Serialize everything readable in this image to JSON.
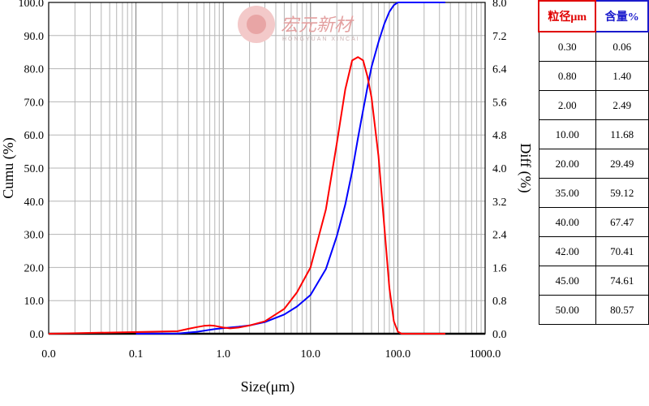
{
  "watermark": {
    "text": "宏元新材",
    "subtext": "HONGYUAN XINCAI"
  },
  "chart_data": {
    "type": "line",
    "x_scale": "log",
    "xlabel": "Size(μm)",
    "ylabel_left": "Cumu (%)",
    "ylabel_right": "Diff (%)",
    "xlim": [
      0.01,
      1000
    ],
    "ylim_left": [
      0,
      100
    ],
    "ylim_right": [
      0,
      8
    ],
    "x_tick_labels": [
      "0.0",
      "0.1",
      "1.0",
      "10.0",
      "100.0",
      "1000.0"
    ],
    "y_left_tick_labels": [
      "0.0",
      "10.0",
      "20.0",
      "30.0",
      "40.0",
      "50.0",
      "60.0",
      "70.0",
      "80.0",
      "90.0",
      "100.0"
    ],
    "y_right_tick_labels": [
      "0.0",
      "0.8",
      "1.6",
      "2.4",
      "3.2",
      "4.0",
      "4.8",
      "5.6",
      "6.4",
      "7.2",
      "8.0"
    ],
    "grid": true,
    "series": [
      {
        "axis": "left",
        "color": "#0000ff",
        "x": [
          0.1,
          0.3,
          0.5,
          0.8,
          1.0,
          1.5,
          2.0,
          3.0,
          5.0,
          7.0,
          10.0,
          15.0,
          20.0,
          25.0,
          30.0,
          35.0,
          40.0,
          42.0,
          45.0,
          50.0,
          60.0,
          70.0,
          80.0,
          90.0,
          100.0,
          110.0,
          130.0,
          200.0,
          350.0
        ],
        "y": [
          0,
          0.06,
          0.6,
          1.4,
          1.7,
          2.1,
          2.49,
          3.5,
          5.8,
          8.2,
          11.68,
          19.5,
          29.49,
          39.0,
          49.0,
          59.12,
          67.47,
          70.41,
          74.61,
          80.57,
          88.0,
          93.5,
          97.2,
          99.2,
          100,
          100,
          100,
          100,
          100
        ]
      },
      {
        "axis": "right",
        "color": "#ff0000",
        "x": [
          0.01,
          0.3,
          0.4,
          0.5,
          0.6,
          0.7,
          0.8,
          1.0,
          1.2,
          1.5,
          2.0,
          3.0,
          5.0,
          7.0,
          10.0,
          15.0,
          20.0,
          25.0,
          30.0,
          35.0,
          40.0,
          45.0,
          50.0,
          60.0,
          70.0,
          80.0,
          90.0,
          100.0,
          110.0,
          200.0,
          350.0
        ],
        "y": [
          0,
          0.06,
          0.12,
          0.16,
          0.19,
          0.2,
          0.19,
          0.15,
          0.13,
          0.15,
          0.2,
          0.3,
          0.6,
          1.0,
          1.6,
          3.0,
          4.6,
          5.9,
          6.6,
          6.68,
          6.6,
          6.2,
          5.7,
          4.3,
          2.6,
          1.1,
          0.3,
          0.05,
          0,
          0,
          0
        ]
      }
    ]
  },
  "table": {
    "headers": [
      "粒径μm",
      "含量%"
    ],
    "rows": [
      [
        "0.30",
        "0.06"
      ],
      [
        "0.80",
        "1.40"
      ],
      [
        "2.00",
        "2.49"
      ],
      [
        "10.00",
        "11.68"
      ],
      [
        "20.00",
        "29.49"
      ],
      [
        "35.00",
        "59.12"
      ],
      [
        "40.00",
        "67.47"
      ],
      [
        "42.00",
        "70.41"
      ],
      [
        "45.00",
        "74.61"
      ],
      [
        "50.00",
        "80.57"
      ]
    ]
  }
}
